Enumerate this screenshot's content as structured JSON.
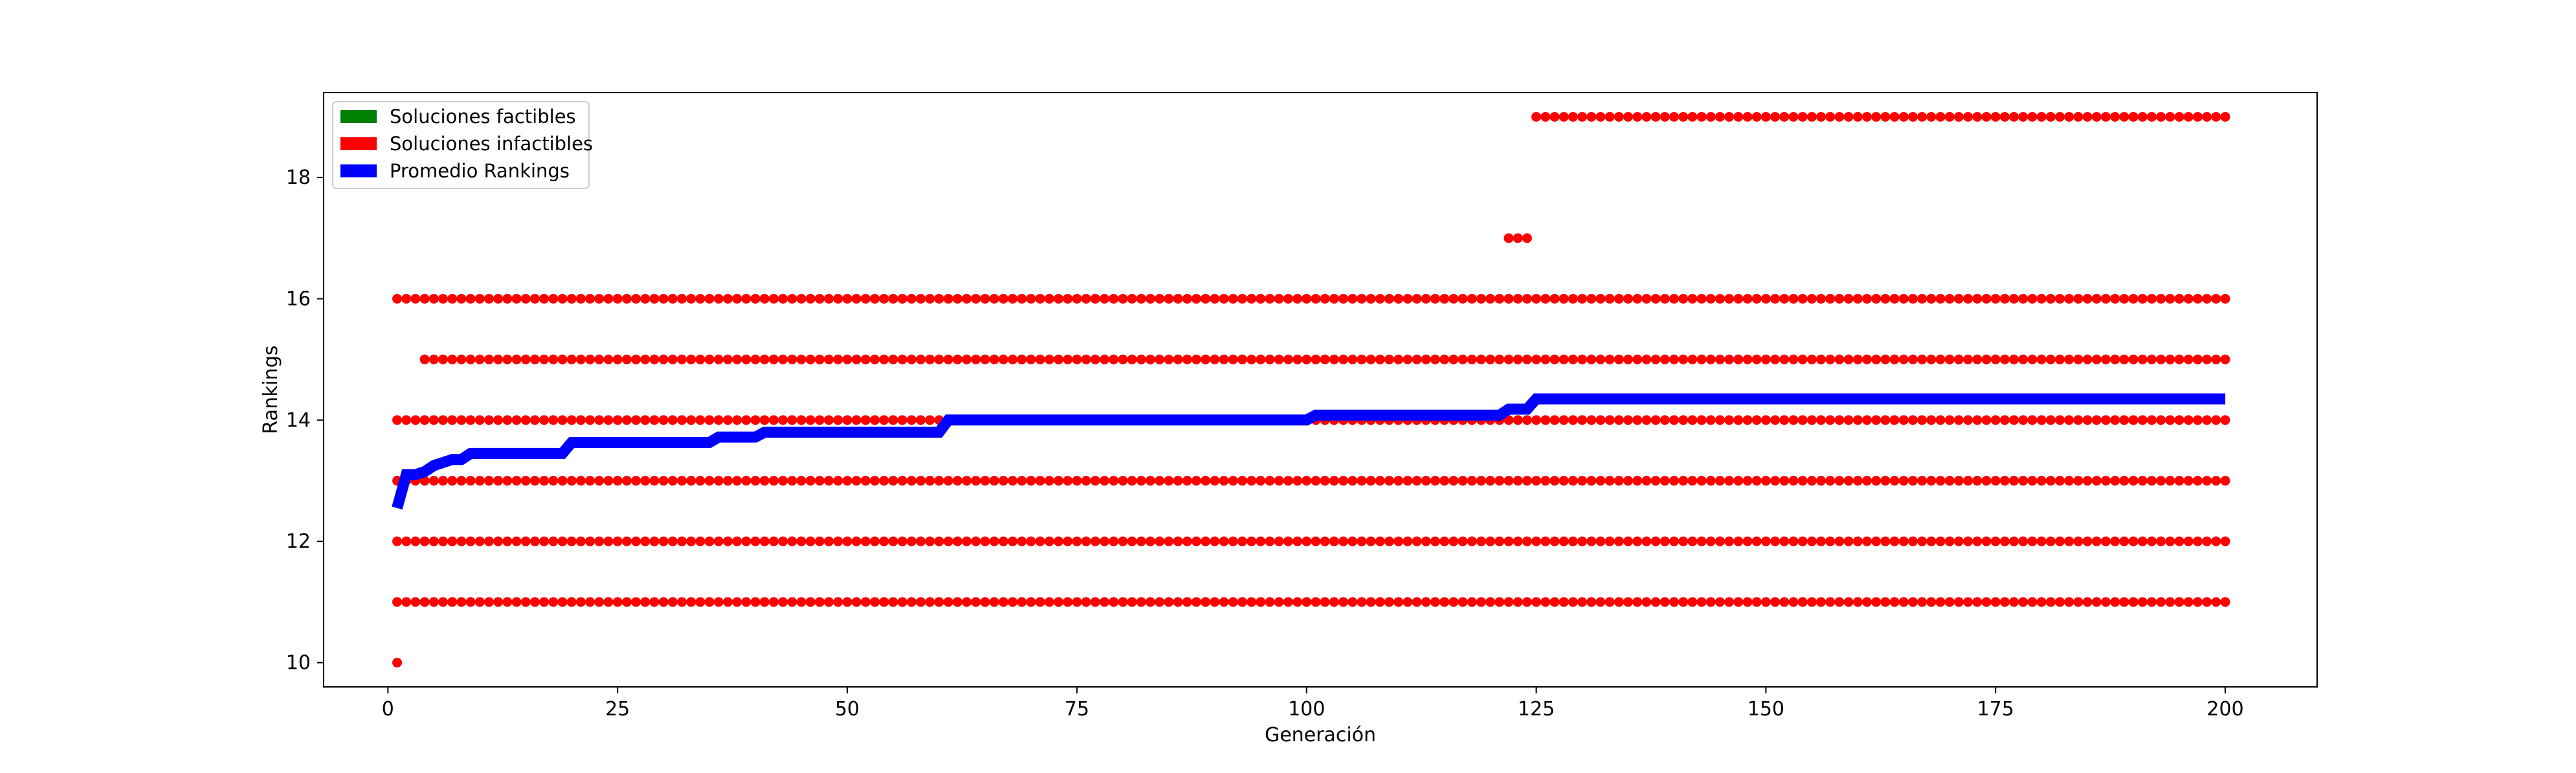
{
  "chart_data": {
    "type": "scatter",
    "title": "",
    "xlabel": "Generación",
    "ylabel": "Rankings",
    "xlim": [
      -7,
      210
    ],
    "ylim": [
      9.6,
      19.4
    ],
    "x_ticks": [
      0,
      25,
      50,
      75,
      100,
      125,
      150,
      175,
      200
    ],
    "y_ticks": [
      10,
      12,
      14,
      16,
      18
    ],
    "grid": false,
    "legend_position": "top-left",
    "generations": [
      1,
      200
    ],
    "series": [
      {
        "name": "Soluciones factibles",
        "color": "#008000",
        "points": []
      },
      {
        "name": "Soluciones infactibles",
        "color": "#ff0000",
        "levels": [
          {
            "y": 11,
            "x_range": [
              1,
              200
            ]
          },
          {
            "y": 12,
            "x_range": [
              1,
              200
            ]
          },
          {
            "y": 13,
            "x_range": [
              1,
              200
            ]
          },
          {
            "y": 14,
            "x_range": [
              1,
              200
            ]
          },
          {
            "y": 15,
            "x_range": [
              4,
              200
            ]
          },
          {
            "y": 16,
            "x_range": [
              1,
              200
            ]
          },
          {
            "y": 17,
            "x_range": [
              122,
              124
            ]
          },
          {
            "y": 19,
            "x_range": [
              125,
              200
            ]
          }
        ],
        "extra_points": [
          {
            "x": 1,
            "y": 10
          }
        ]
      },
      {
        "name": "Promedio Rankings",
        "color": "#0000ff",
        "type": "line",
        "points": [
          [
            1,
            12.55
          ],
          [
            2,
            13.1
          ],
          [
            3,
            13.1
          ],
          [
            4,
            13.15
          ],
          [
            5,
            13.25
          ],
          [
            6,
            13.3
          ],
          [
            7,
            13.35
          ],
          [
            8,
            13.35
          ],
          [
            9,
            13.45
          ],
          [
            19,
            13.45
          ],
          [
            20,
            13.63
          ],
          [
            35,
            13.63
          ],
          [
            36,
            13.72
          ],
          [
            40,
            13.72
          ],
          [
            41,
            13.8
          ],
          [
            60,
            13.8
          ],
          [
            61,
            14.0
          ],
          [
            100,
            14.0
          ],
          [
            101,
            14.08
          ],
          [
            121,
            14.08
          ],
          [
            122,
            14.18
          ],
          [
            124,
            14.18
          ],
          [
            125,
            14.35
          ],
          [
            200,
            14.35
          ]
        ]
      }
    ]
  }
}
